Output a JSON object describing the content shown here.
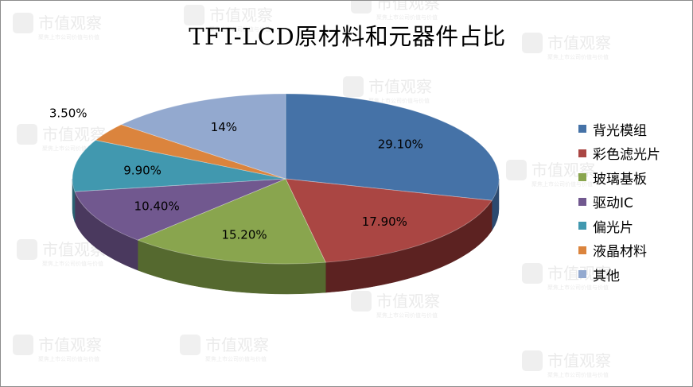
{
  "chart_data": {
    "type": "pie",
    "title": "TFT-LCD原材料和元器件占比",
    "slices": [
      {
        "name": "背光模组",
        "value": 29.1,
        "label": "29.10%",
        "color": "#4572a7",
        "side": "#2c4a70"
      },
      {
        "name": "彩色滤光片",
        "value": 17.9,
        "label": "17.90%",
        "color": "#aa4643",
        "side": "#5c2221"
      },
      {
        "name": "玻璃基板",
        "value": 15.2,
        "label": "15.20%",
        "color": "#89a54e",
        "side": "#55692f"
      },
      {
        "name": "驱动IC",
        "value": 10.4,
        "label": "10.40%",
        "color": "#71588f",
        "side": "#4a395e"
      },
      {
        "name": "偏光片",
        "value": 9.9,
        "label": "9.90%",
        "color": "#4198af",
        "side": "#2a6373"
      },
      {
        "name": "液晶材料",
        "value": 3.5,
        "label": "3.50%",
        "color": "#db843d",
        "side": "#8e5528"
      },
      {
        "name": "其他",
        "value": 14,
        "label": "14%",
        "color": "#93a9cf",
        "side": "#5f6e86"
      }
    ],
    "legend_position": "right",
    "style": "3d"
  },
  "watermark": {
    "text": "市值观察",
    "subtext": "聚焦上市公司价值与价值"
  }
}
